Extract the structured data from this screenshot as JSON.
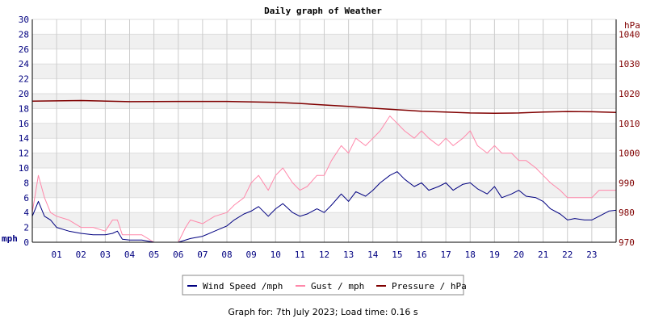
{
  "chart_data": {
    "type": "line",
    "title": "Daily graph of Weather",
    "left_unit": "mph",
    "right_unit": "hPa",
    "x_tick_labels": [
      "01",
      "02",
      "03",
      "04",
      "05",
      "06",
      "07",
      "08",
      "09",
      "10",
      "11",
      "12",
      "13",
      "14",
      "15",
      "16",
      "17",
      "18",
      "19",
      "20",
      "21",
      "22",
      "23"
    ],
    "x_range": [
      0,
      24
    ],
    "left_axis": {
      "range": [
        0,
        30
      ],
      "ticks": [
        0,
        2,
        4,
        6,
        8,
        10,
        12,
        14,
        16,
        18,
        20,
        22,
        24,
        26,
        28,
        30
      ]
    },
    "right_axis": {
      "range": [
        970,
        1045
      ],
      "ticks": [
        970,
        980,
        990,
        1000,
        1010,
        1020,
        1030,
        1040
      ]
    },
    "grid": true,
    "legend_position": "bottom-center",
    "legend": [
      "Wind Speed /mph",
      "Gust / mph",
      "Pressure / hPa"
    ],
    "series": [
      {
        "name": "Wind Speed /mph",
        "axis": "left",
        "color": "#000080",
        "points": [
          [
            0,
            3.5
          ],
          [
            0.25,
            5.5
          ],
          [
            0.5,
            3.5
          ],
          [
            0.75,
            3.0
          ],
          [
            1,
            2.0
          ],
          [
            1.5,
            1.5
          ],
          [
            2,
            1.2
          ],
          [
            2.5,
            1.0
          ],
          [
            3,
            1.0
          ],
          [
            3.3,
            1.2
          ],
          [
            3.5,
            1.5
          ],
          [
            3.7,
            0.4
          ],
          [
            4,
            0.3
          ],
          [
            4.5,
            0.3
          ],
          [
            5,
            0
          ],
          [
            5.5,
            0
          ],
          [
            6,
            0
          ],
          [
            6.5,
            0.5
          ],
          [
            7,
            0.8
          ],
          [
            7.5,
            1.5
          ],
          [
            8,
            2.2
          ],
          [
            8.3,
            3.0
          ],
          [
            8.7,
            3.8
          ],
          [
            9,
            4.2
          ],
          [
            9.3,
            4.8
          ],
          [
            9.7,
            3.5
          ],
          [
            10,
            4.5
          ],
          [
            10.3,
            5.2
          ],
          [
            10.7,
            4.0
          ],
          [
            11,
            3.5
          ],
          [
            11.3,
            3.8
          ],
          [
            11.7,
            4.5
          ],
          [
            12,
            4.0
          ],
          [
            12.3,
            5.0
          ],
          [
            12.7,
            6.5
          ],
          [
            13,
            5.5
          ],
          [
            13.3,
            6.8
          ],
          [
            13.7,
            6.2
          ],
          [
            14,
            7.0
          ],
          [
            14.3,
            8.0
          ],
          [
            14.7,
            9.0
          ],
          [
            15,
            9.5
          ],
          [
            15.3,
            8.5
          ],
          [
            15.7,
            7.5
          ],
          [
            16,
            8.0
          ],
          [
            16.3,
            7.0
          ],
          [
            16.7,
            7.5
          ],
          [
            17,
            8.0
          ],
          [
            17.3,
            7.0
          ],
          [
            17.7,
            7.8
          ],
          [
            18,
            8.0
          ],
          [
            18.3,
            7.2
          ],
          [
            18.7,
            6.5
          ],
          [
            19,
            7.5
          ],
          [
            19.3,
            6.0
          ],
          [
            19.7,
            6.5
          ],
          [
            20,
            7.0
          ],
          [
            20.3,
            6.2
          ],
          [
            20.7,
            6.0
          ],
          [
            21,
            5.5
          ],
          [
            21.3,
            4.5
          ],
          [
            21.7,
            3.8
          ],
          [
            22,
            3.0
          ],
          [
            22.3,
            3.2
          ],
          [
            22.7,
            3.0
          ],
          [
            23,
            3.0
          ],
          [
            23.3,
            3.5
          ],
          [
            23.7,
            4.2
          ],
          [
            24,
            4.3
          ]
        ]
      },
      {
        "name": "Gust / mph",
        "axis": "left",
        "color": "#ff88aa",
        "points": [
          [
            0,
            4
          ],
          [
            0.25,
            9
          ],
          [
            0.5,
            6
          ],
          [
            0.75,
            4
          ],
          [
            1,
            3.5
          ],
          [
            1.5,
            3
          ],
          [
            2,
            2
          ],
          [
            2.5,
            2
          ],
          [
            3,
            1.5
          ],
          [
            3.3,
            3
          ],
          [
            3.5,
            3
          ],
          [
            3.7,
            1
          ],
          [
            4,
            1
          ],
          [
            4.5,
            1
          ],
          [
            5,
            0
          ],
          [
            5.5,
            0
          ],
          [
            6,
            0
          ],
          [
            6.3,
            2
          ],
          [
            6.5,
            3
          ],
          [
            7,
            2.5
          ],
          [
            7.5,
            3.5
          ],
          [
            8,
            4
          ],
          [
            8.3,
            5
          ],
          [
            8.7,
            6
          ],
          [
            9,
            8
          ],
          [
            9.3,
            9
          ],
          [
            9.7,
            7
          ],
          [
            10,
            9
          ],
          [
            10.3,
            10
          ],
          [
            10.7,
            8
          ],
          [
            11,
            7
          ],
          [
            11.3,
            7.5
          ],
          [
            11.7,
            9
          ],
          [
            12,
            9
          ],
          [
            12.3,
            11
          ],
          [
            12.7,
            13
          ],
          [
            13,
            12
          ],
          [
            13.3,
            14
          ],
          [
            13.7,
            13
          ],
          [
            14,
            14
          ],
          [
            14.3,
            15
          ],
          [
            14.7,
            17
          ],
          [
            15,
            16
          ],
          [
            15.3,
            15
          ],
          [
            15.7,
            14
          ],
          [
            16,
            15
          ],
          [
            16.3,
            14
          ],
          [
            16.7,
            13
          ],
          [
            17,
            14
          ],
          [
            17.3,
            13
          ],
          [
            17.7,
            14
          ],
          [
            18,
            15
          ],
          [
            18.3,
            13
          ],
          [
            18.7,
            12
          ],
          [
            19,
            13
          ],
          [
            19.3,
            12
          ],
          [
            19.7,
            12
          ],
          [
            20,
            11
          ],
          [
            20.3,
            11
          ],
          [
            20.7,
            10
          ],
          [
            21,
            9
          ],
          [
            21.3,
            8
          ],
          [
            21.7,
            7
          ],
          [
            22,
            6
          ],
          [
            22.3,
            6
          ],
          [
            22.7,
            6
          ],
          [
            23,
            6
          ],
          [
            23.3,
            7
          ],
          [
            23.7,
            7
          ],
          [
            24,
            7
          ]
        ]
      },
      {
        "name": "Pressure / hPa",
        "axis": "right",
        "color": "#800000",
        "points": [
          [
            0,
            1017.5
          ],
          [
            2,
            1017.7
          ],
          [
            4,
            1017.3
          ],
          [
            6,
            1017.4
          ],
          [
            8,
            1017.4
          ],
          [
            10,
            1017.1
          ],
          [
            11,
            1016.7
          ],
          [
            12,
            1016.2
          ],
          [
            13,
            1015.7
          ],
          [
            14,
            1015.1
          ],
          [
            15,
            1014.6
          ],
          [
            16,
            1014.1
          ],
          [
            17,
            1013.8
          ],
          [
            18,
            1013.5
          ],
          [
            19,
            1013.4
          ],
          [
            20,
            1013.5
          ],
          [
            21,
            1013.8
          ],
          [
            22,
            1014.0
          ],
          [
            23,
            1013.9
          ],
          [
            24,
            1013.7
          ]
        ]
      }
    ]
  },
  "footer": {
    "text": "Graph for: 7th July 2023; Load time: 0.16 s"
  }
}
